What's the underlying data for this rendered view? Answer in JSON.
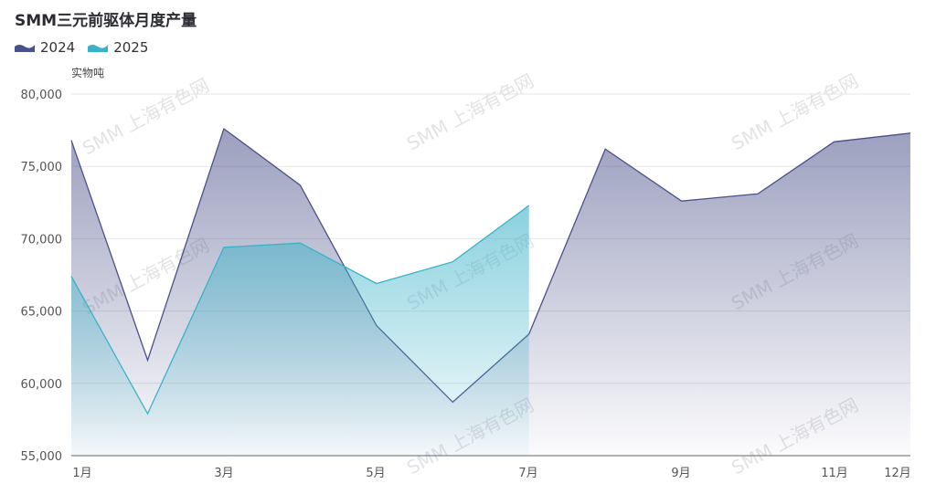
{
  "header": {
    "title": "SMM三元前驱体月度产量"
  },
  "legend": {
    "items": [
      "2024",
      "2025"
    ]
  },
  "unit": "实物吨",
  "watermark": "SMM 上海有色网",
  "colors": {
    "s2024": "#4a5089",
    "s2025": "#3ab2c8"
  },
  "chart_data": {
    "type": "area",
    "title": "SMM三元前驱体月度产量",
    "ylabel": "实物吨",
    "ylim": [
      55000,
      80000
    ],
    "yticks": [
      "80,000",
      "75,000",
      "70,000",
      "65,000",
      "60,000",
      "55,000"
    ],
    "x_ticklabels": [
      "1月",
      "3月",
      "5月",
      "7月",
      "9月",
      "11月",
      "12月"
    ],
    "series": [
      {
        "name": "2024",
        "values": [
          76800,
          61600,
          77600,
          73700,
          64000,
          58700,
          63400,
          76200,
          72600,
          73100,
          76700,
          77300
        ]
      },
      {
        "name": "2025",
        "values": [
          67400,
          57900,
          69400,
          69700,
          66900,
          68400,
          72300
        ]
      }
    ]
  }
}
